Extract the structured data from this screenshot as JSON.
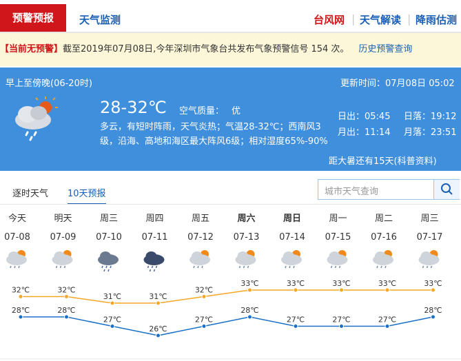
{
  "nav": {
    "tabs": [
      "预警预报",
      "天气监测"
    ],
    "links": [
      "台风网",
      "天气解读",
      "降雨估测"
    ]
  },
  "alert": {
    "status": "【当前无预警】",
    "message": "截至2019年07月08日,今年深圳市气象台共发布气象预警信号 154 次。",
    "history_link": "历史预警查询"
  },
  "today": {
    "period": "早上至傍晚(06-20时)",
    "updated": "更新时间：07月08日 05:02",
    "temperature": "28-32℃",
    "air_quality_label": "空气质量：",
    "air_quality": "优",
    "description": "多云，有短时阵雨，天气炎热；气温28-32℃；西南风3级，沿海、高地和海区最大阵风6级；相对湿度65%-90%",
    "sunrise": "日出：05:45",
    "sunset": "日落：19:12",
    "moonrise": "月出：11:14",
    "moonset": "月落：23:51",
    "solar_term": "距大暑还有15天(科普资料)"
  },
  "view_tabs": [
    "逐时天气",
    "10天预报"
  ],
  "search_placeholder": "城市天气查询",
  "forecast": {
    "days": [
      "今天",
      "明天",
      "周三",
      "周四",
      "周五",
      "周六",
      "周日",
      "周一",
      "周二",
      "周三"
    ],
    "dates": [
      "07-08",
      "07-09",
      "07-10",
      "07-11",
      "07-12",
      "07-13",
      "07-14",
      "07-15",
      "07-16",
      "07-17"
    ],
    "high": {
      "values": [
        32,
        32,
        31,
        31,
        32,
        33,
        33,
        33,
        33,
        33
      ],
      "value_labels": [
        "32℃",
        "32℃",
        "31℃",
        "31℃",
        "32℃",
        "33℃",
        "33℃",
        "33℃",
        "33℃",
        "33℃"
      ]
    },
    "low": {
      "values": [
        28,
        28,
        27,
        26,
        27,
        28,
        27,
        27,
        27,
        28
      ],
      "value_labels": [
        "28℃",
        "28℃",
        "27℃",
        "26℃",
        "27℃",
        "28℃",
        "27℃",
        "27℃",
        "27℃",
        "28℃"
      ]
    }
  }
}
